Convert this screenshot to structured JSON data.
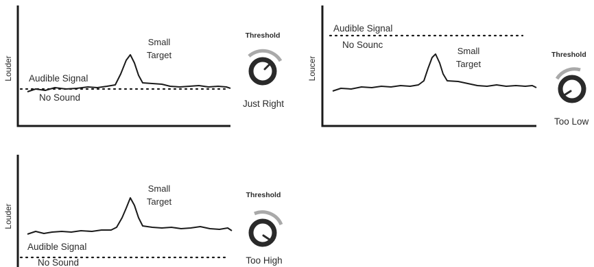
{
  "panels": [
    {
      "id": "just-right",
      "ylabel": "Louder",
      "target_label": [
        "Small",
        "Target"
      ],
      "threshold_label": "Threshold",
      "audible_label": "Audible Signal",
      "nosound_label": "No Sound",
      "knob_caption": "Just Right"
    },
    {
      "id": "too-low",
      "ylabel": "Loucer",
      "target_label": [
        "Small",
        "Target"
      ],
      "threshold_label": "Threshold",
      "audible_label": "Audible Signal",
      "nosound_label": "No Sounc",
      "knob_caption": "Too Low"
    },
    {
      "id": "too-high",
      "ylabel": "Louder",
      "target_label": [
        "Small",
        "Target"
      ],
      "threshold_label": "Threshold",
      "audible_label": "Audible Signal",
      "nosound_label": "No Sound",
      "knob_caption": "Too High"
    }
  ]
}
